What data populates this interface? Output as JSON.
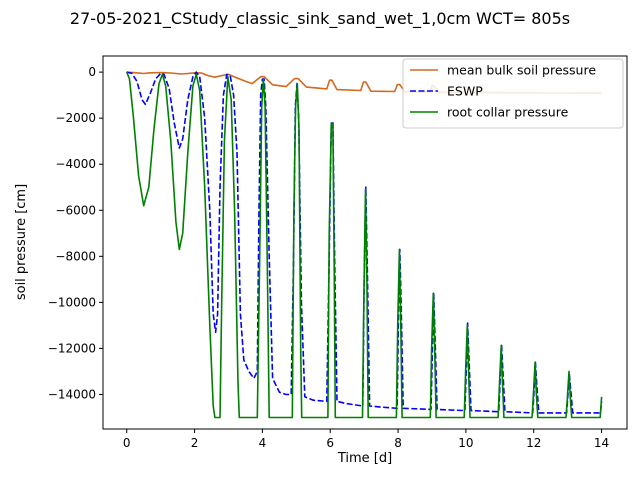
{
  "chart_data": {
    "type": "line",
    "title": "27-05-2021_CStudy_classic_sink_sand_wet_1,0cm  WCT= 805s",
    "xlabel": "Time [d]",
    "ylabel": "soil pressure [cm]",
    "xlim": [
      -0.7,
      14.75
    ],
    "ylim": [
      -15500,
      700
    ],
    "xticks": [
      0,
      2,
      4,
      6,
      8,
      10,
      12,
      14
    ],
    "yticks": [
      0,
      -2000,
      -4000,
      -6000,
      -8000,
      -10000,
      -12000,
      -14000
    ],
    "xtick_labels": [
      "0",
      "2",
      "4",
      "6",
      "8",
      "10",
      "12",
      "14"
    ],
    "ytick_labels": [
      "0",
      "−2000",
      "−4000",
      "−6000",
      "−8000",
      "−10000",
      "−12000",
      "−14000"
    ],
    "grid": false,
    "legend_position": "top-right",
    "series": [
      {
        "name": "mean bulk soil pressure",
        "color": "#d2691e",
        "dash": "solid",
        "points": [
          [
            0,
            0
          ],
          [
            0.3,
            -30
          ],
          [
            0.5,
            -60
          ],
          [
            0.7,
            -30
          ],
          [
            1.0,
            -20
          ],
          [
            1.3,
            -40
          ],
          [
            1.6,
            -80
          ],
          [
            1.8,
            -60
          ],
          [
            2.0,
            -30
          ],
          [
            2.2,
            -40
          ],
          [
            2.4,
            -150
          ],
          [
            2.6,
            -220
          ],
          [
            2.8,
            -150
          ],
          [
            3.0,
            -100
          ],
          [
            3.2,
            -220
          ],
          [
            3.5,
            -400
          ],
          [
            3.7,
            -500
          ],
          [
            3.95,
            -200
          ],
          [
            4.05,
            -200
          ],
          [
            4.3,
            -550
          ],
          [
            4.7,
            -630
          ],
          [
            4.95,
            -280
          ],
          [
            5.05,
            -280
          ],
          [
            5.3,
            -650
          ],
          [
            5.9,
            -730
          ],
          [
            5.98,
            -350
          ],
          [
            6.05,
            -350
          ],
          [
            6.2,
            -760
          ],
          [
            6.9,
            -800
          ],
          [
            6.98,
            -430
          ],
          [
            7.05,
            -430
          ],
          [
            7.2,
            -830
          ],
          [
            7.9,
            -840
          ],
          [
            7.98,
            -540
          ],
          [
            8.05,
            -540
          ],
          [
            8.2,
            -860
          ],
          [
            8.95,
            -870
          ],
          [
            9.0,
            -600
          ],
          [
            9.05,
            -600
          ],
          [
            9.2,
            -880
          ],
          [
            9.95,
            -880
          ],
          [
            10.0,
            -650
          ],
          [
            10.05,
            -650
          ],
          [
            10.2,
            -890
          ],
          [
            11.0,
            -890
          ],
          [
            11.2,
            -900
          ],
          [
            12.0,
            -900
          ],
          [
            12.2,
            -905
          ],
          [
            13.0,
            -905
          ],
          [
            13.2,
            -910
          ],
          [
            14.0,
            -910
          ]
        ]
      },
      {
        "name": "ESWP",
        "color": "#0000ff",
        "dash": "dashed",
        "points": [
          [
            0,
            0
          ],
          [
            0.15,
            -50
          ],
          [
            0.3,
            -400
          ],
          [
            0.45,
            -1200
          ],
          [
            0.55,
            -1400
          ],
          [
            0.7,
            -900
          ],
          [
            0.85,
            -300
          ],
          [
            1.0,
            -50
          ],
          [
            1.1,
            -100
          ],
          [
            1.25,
            -700
          ],
          [
            1.4,
            -2200
          ],
          [
            1.55,
            -3300
          ],
          [
            1.65,
            -2900
          ],
          [
            1.8,
            -1200
          ],
          [
            1.95,
            -200
          ],
          [
            2.05,
            0
          ],
          [
            2.15,
            -200
          ],
          [
            2.3,
            -2000
          ],
          [
            2.45,
            -6000
          ],
          [
            2.55,
            -10500
          ],
          [
            2.62,
            -11300
          ],
          [
            2.68,
            -10500
          ],
          [
            2.75,
            -5000
          ],
          [
            2.85,
            -1000
          ],
          [
            2.95,
            -100
          ],
          [
            3.05,
            -150
          ],
          [
            3.15,
            -1000
          ],
          [
            3.25,
            -3500
          ],
          [
            3.35,
            -10500
          ],
          [
            3.45,
            -12500
          ],
          [
            3.6,
            -13000
          ],
          [
            3.75,
            -13300
          ],
          [
            3.85,
            -13000
          ],
          [
            3.9,
            -6000
          ],
          [
            3.95,
            -1000
          ],
          [
            4.0,
            -300
          ],
          [
            4.05,
            -300
          ],
          [
            4.1,
            -1500
          ],
          [
            4.2,
            -8000
          ],
          [
            4.3,
            -13300
          ],
          [
            4.5,
            -13900
          ],
          [
            4.7,
            -14000
          ],
          [
            4.85,
            -14000
          ],
          [
            4.92,
            -8000
          ],
          [
            4.97,
            -1500
          ],
          [
            5.02,
            -500
          ],
          [
            5.07,
            -2000
          ],
          [
            5.15,
            -10000
          ],
          [
            5.25,
            -14100
          ],
          [
            5.5,
            -14250
          ],
          [
            5.9,
            -14300
          ],
          [
            5.97,
            -8000
          ],
          [
            6.03,
            -2200
          ],
          [
            6.08,
            -2200
          ],
          [
            6.13,
            -8000
          ],
          [
            6.2,
            -14300
          ],
          [
            6.5,
            -14400
          ],
          [
            6.96,
            -14500
          ],
          [
            7.0,
            -9000
          ],
          [
            7.05,
            -5000
          ],
          [
            7.1,
            -9000
          ],
          [
            7.16,
            -14500
          ],
          [
            7.5,
            -14550
          ],
          [
            7.97,
            -14600
          ],
          [
            8.02,
            -10000
          ],
          [
            8.05,
            -7700
          ],
          [
            8.09,
            -10000
          ],
          [
            8.15,
            -14600
          ],
          [
            8.97,
            -14650
          ],
          [
            9.02,
            -11500
          ],
          [
            9.05,
            -9600
          ],
          [
            9.09,
            -11500
          ],
          [
            9.15,
            -14650
          ],
          [
            9.97,
            -14700
          ],
          [
            10.02,
            -12500
          ],
          [
            10.05,
            -10900
          ],
          [
            10.09,
            -12500
          ],
          [
            10.15,
            -14700
          ],
          [
            10.97,
            -14750
          ],
          [
            11.02,
            -13000
          ],
          [
            11.05,
            -11800
          ],
          [
            11.09,
            -13000
          ],
          [
            11.15,
            -14750
          ],
          [
            11.97,
            -14800
          ],
          [
            12.02,
            -13600
          ],
          [
            12.05,
            -12600
          ],
          [
            12.09,
            -13600
          ],
          [
            12.15,
            -14800
          ],
          [
            12.97,
            -14800
          ],
          [
            13.02,
            -13800
          ],
          [
            13.05,
            -13100
          ],
          [
            13.09,
            -13800
          ],
          [
            13.15,
            -14800
          ],
          [
            13.97,
            -14800
          ],
          [
            14.0,
            -14300
          ]
        ]
      },
      {
        "name": "root collar pressure",
        "color": "#008000",
        "dash": "solid",
        "points": [
          [
            0,
            0
          ],
          [
            0.08,
            -300
          ],
          [
            0.2,
            -2000
          ],
          [
            0.35,
            -4500
          ],
          [
            0.5,
            -5800
          ],
          [
            0.65,
            -5000
          ],
          [
            0.8,
            -2500
          ],
          [
            0.95,
            -500
          ],
          [
            1.05,
            -100
          ],
          [
            1.15,
            -600
          ],
          [
            1.3,
            -3000
          ],
          [
            1.45,
            -6500
          ],
          [
            1.55,
            -7700
          ],
          [
            1.65,
            -7000
          ],
          [
            1.8,
            -3500
          ],
          [
            1.95,
            -600
          ],
          [
            2.05,
            -100
          ],
          [
            2.15,
            -800
          ],
          [
            2.3,
            -5000
          ],
          [
            2.45,
            -11000
          ],
          [
            2.55,
            -14500
          ],
          [
            2.6,
            -15000
          ],
          [
            2.75,
            -15000
          ],
          [
            2.8,
            -10000
          ],
          [
            2.88,
            -3000
          ],
          [
            2.98,
            -200
          ],
          [
            3.08,
            -1200
          ],
          [
            3.18,
            -6000
          ],
          [
            3.28,
            -13500
          ],
          [
            3.32,
            -15000
          ],
          [
            3.85,
            -15000
          ],
          [
            3.92,
            -8000
          ],
          [
            3.98,
            -1500
          ],
          [
            4.03,
            -300
          ],
          [
            4.08,
            -1500
          ],
          [
            4.15,
            -9000
          ],
          [
            4.2,
            -15000
          ],
          [
            4.88,
            -15000
          ],
          [
            4.93,
            -6000
          ],
          [
            4.98,
            -1500
          ],
          [
            5.03,
            -500
          ],
          [
            5.08,
            -2500
          ],
          [
            5.13,
            -12000
          ],
          [
            5.16,
            -15000
          ],
          [
            5.93,
            -15000
          ],
          [
            5.97,
            -7000
          ],
          [
            6.03,
            -2200
          ],
          [
            6.08,
            -2300
          ],
          [
            6.12,
            -9000
          ],
          [
            6.15,
            -15000
          ],
          [
            6.95,
            -15000
          ],
          [
            6.99,
            -10000
          ],
          [
            7.04,
            -5100
          ],
          [
            7.08,
            -9000
          ],
          [
            7.12,
            -15000
          ],
          [
            7.95,
            -15000
          ],
          [
            7.99,
            -11000
          ],
          [
            8.04,
            -7700
          ],
          [
            8.08,
            -11000
          ],
          [
            8.12,
            -15000
          ],
          [
            8.95,
            -15000
          ],
          [
            8.99,
            -12000
          ],
          [
            9.04,
            -9600
          ],
          [
            9.08,
            -12000
          ],
          [
            9.12,
            -15000
          ],
          [
            9.95,
            -15000
          ],
          [
            9.99,
            -13000
          ],
          [
            10.04,
            -11000
          ],
          [
            10.08,
            -13000
          ],
          [
            10.12,
            -15000
          ],
          [
            10.95,
            -15000
          ],
          [
            10.99,
            -13500
          ],
          [
            11.04,
            -11900
          ],
          [
            11.08,
            -13500
          ],
          [
            11.12,
            -15000
          ],
          [
            11.95,
            -15000
          ],
          [
            11.99,
            -14000
          ],
          [
            12.04,
            -12600
          ],
          [
            12.08,
            -14000
          ],
          [
            12.12,
            -15000
          ],
          [
            12.95,
            -15000
          ],
          [
            12.99,
            -14200
          ],
          [
            13.04,
            -13000
          ],
          [
            13.08,
            -14200
          ],
          [
            13.12,
            -15000
          ],
          [
            13.96,
            -15000
          ],
          [
            14.0,
            -14100
          ]
        ]
      }
    ]
  }
}
